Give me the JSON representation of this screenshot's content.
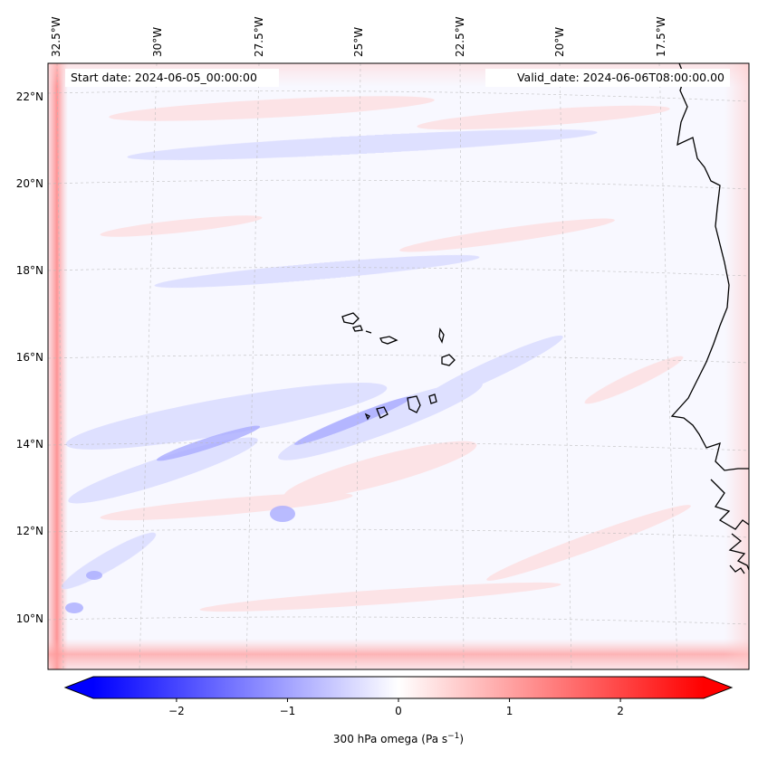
{
  "header": {
    "start_date": "Start date: 2024-06-05_00:00:00",
    "valid_date": "Valid_date: 2024-06-06T08:00:00.00"
  },
  "map": {
    "lon_labels": [
      "32.5°W",
      "30°W",
      "27.5°W",
      "25°W",
      "22.5°W",
      "20°W",
      "17.5°W"
    ],
    "lat_labels": [
      "22°N",
      "20°N",
      "18°N",
      "16°N",
      "14°N",
      "12°N",
      "10°N"
    ],
    "gridlines": true,
    "field": "300 hPa omega",
    "background_color": "#f8f8ff",
    "coastline_color": "#000000"
  },
  "colorbar": {
    "label": "300 hPa omega (Pa s",
    "label_exp": "−1",
    "label_close": ")",
    "ticks": [
      "−2",
      "−1",
      "0",
      "1",
      "2"
    ],
    "tick_values": [
      -2,
      -1,
      0,
      1,
      2
    ],
    "range": [
      -2.75,
      2.75
    ],
    "extend": "both",
    "colormap": "bwr",
    "colors": {
      "low": "#0000ff",
      "mid": "#ffffff",
      "high": "#ff0000"
    }
  }
}
